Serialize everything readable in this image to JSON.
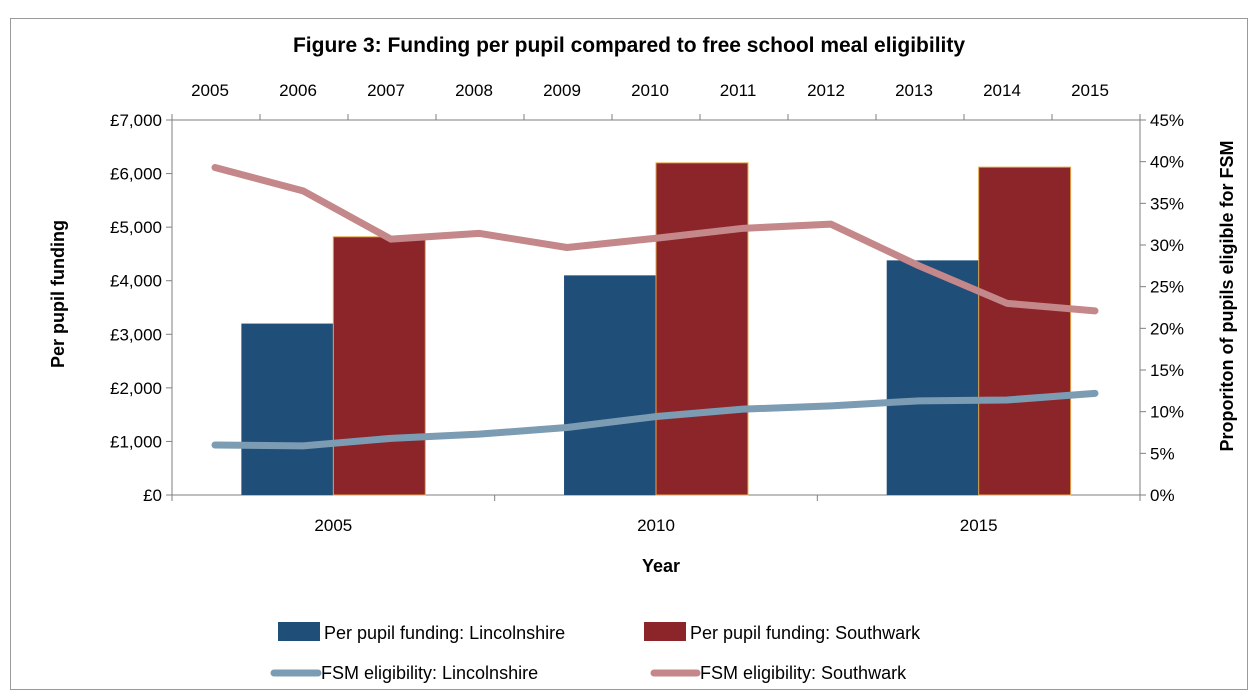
{
  "chart_data": {
    "type": "bar",
    "title": "Figure 3: Funding per pupil compared to free school meal eligibility",
    "xlabel": "Year",
    "ylabel": "Per pupil funding",
    "y2label": "Proporiton of pupils eligible for FSM",
    "categories": [
      "2005",
      "2010",
      "2015"
    ],
    "secondary_x_categories": [
      "2005",
      "2006",
      "2007",
      "2008",
      "2009",
      "2010",
      "2011",
      "2012",
      "2013",
      "2014",
      "2015"
    ],
    "y_ticks": [
      "£0",
      "£1,000",
      "£2,000",
      "£3,000",
      "£4,000",
      "£5,000",
      "£6,000",
      "£7,000"
    ],
    "y2_ticks": [
      "0%",
      "5%",
      "10%",
      "15%",
      "20%",
      "25%",
      "30%",
      "35%",
      "40%",
      "45%"
    ],
    "ylim": [
      0,
      7000
    ],
    "y2lim": [
      0,
      45
    ],
    "grid": false,
    "legend_position": "bottom",
    "series": [
      {
        "name": "Per pupil funding: Lincolnshire",
        "type": "bar",
        "axis": "primary",
        "color": "#1f4e79",
        "values": [
          3200,
          4100,
          4380
        ]
      },
      {
        "name": "Per pupil funding: Southwark",
        "type": "bar",
        "axis": "primary",
        "color": "#8b2529",
        "values": [
          4820,
          6200,
          6120
        ]
      },
      {
        "name": "FSM eligibility: Lincolnshire",
        "type": "line",
        "axis": "secondary",
        "color": "#7b9cb3",
        "x": [
          "2005",
          "2006",
          "2007",
          "2008",
          "2009",
          "2010",
          "2011",
          "2012",
          "2013",
          "2014",
          "2015"
        ],
        "values": [
          6.0,
          5.9,
          6.8,
          7.3,
          8.1,
          9.4,
          10.3,
          10.7,
          11.3,
          11.4,
          12.2
        ]
      },
      {
        "name": "FSM eligibility: Southwark",
        "type": "line",
        "axis": "secondary",
        "color": "#c4878a",
        "x": [
          "2005",
          "2006",
          "2007",
          "2008",
          "2009",
          "2010",
          "2011",
          "2012",
          "2013",
          "2014",
          "2015"
        ],
        "values": [
          39.3,
          36.5,
          30.7,
          31.4,
          29.7,
          30.8,
          32.0,
          32.5,
          27.5,
          23.0,
          22.1
        ]
      }
    ]
  }
}
